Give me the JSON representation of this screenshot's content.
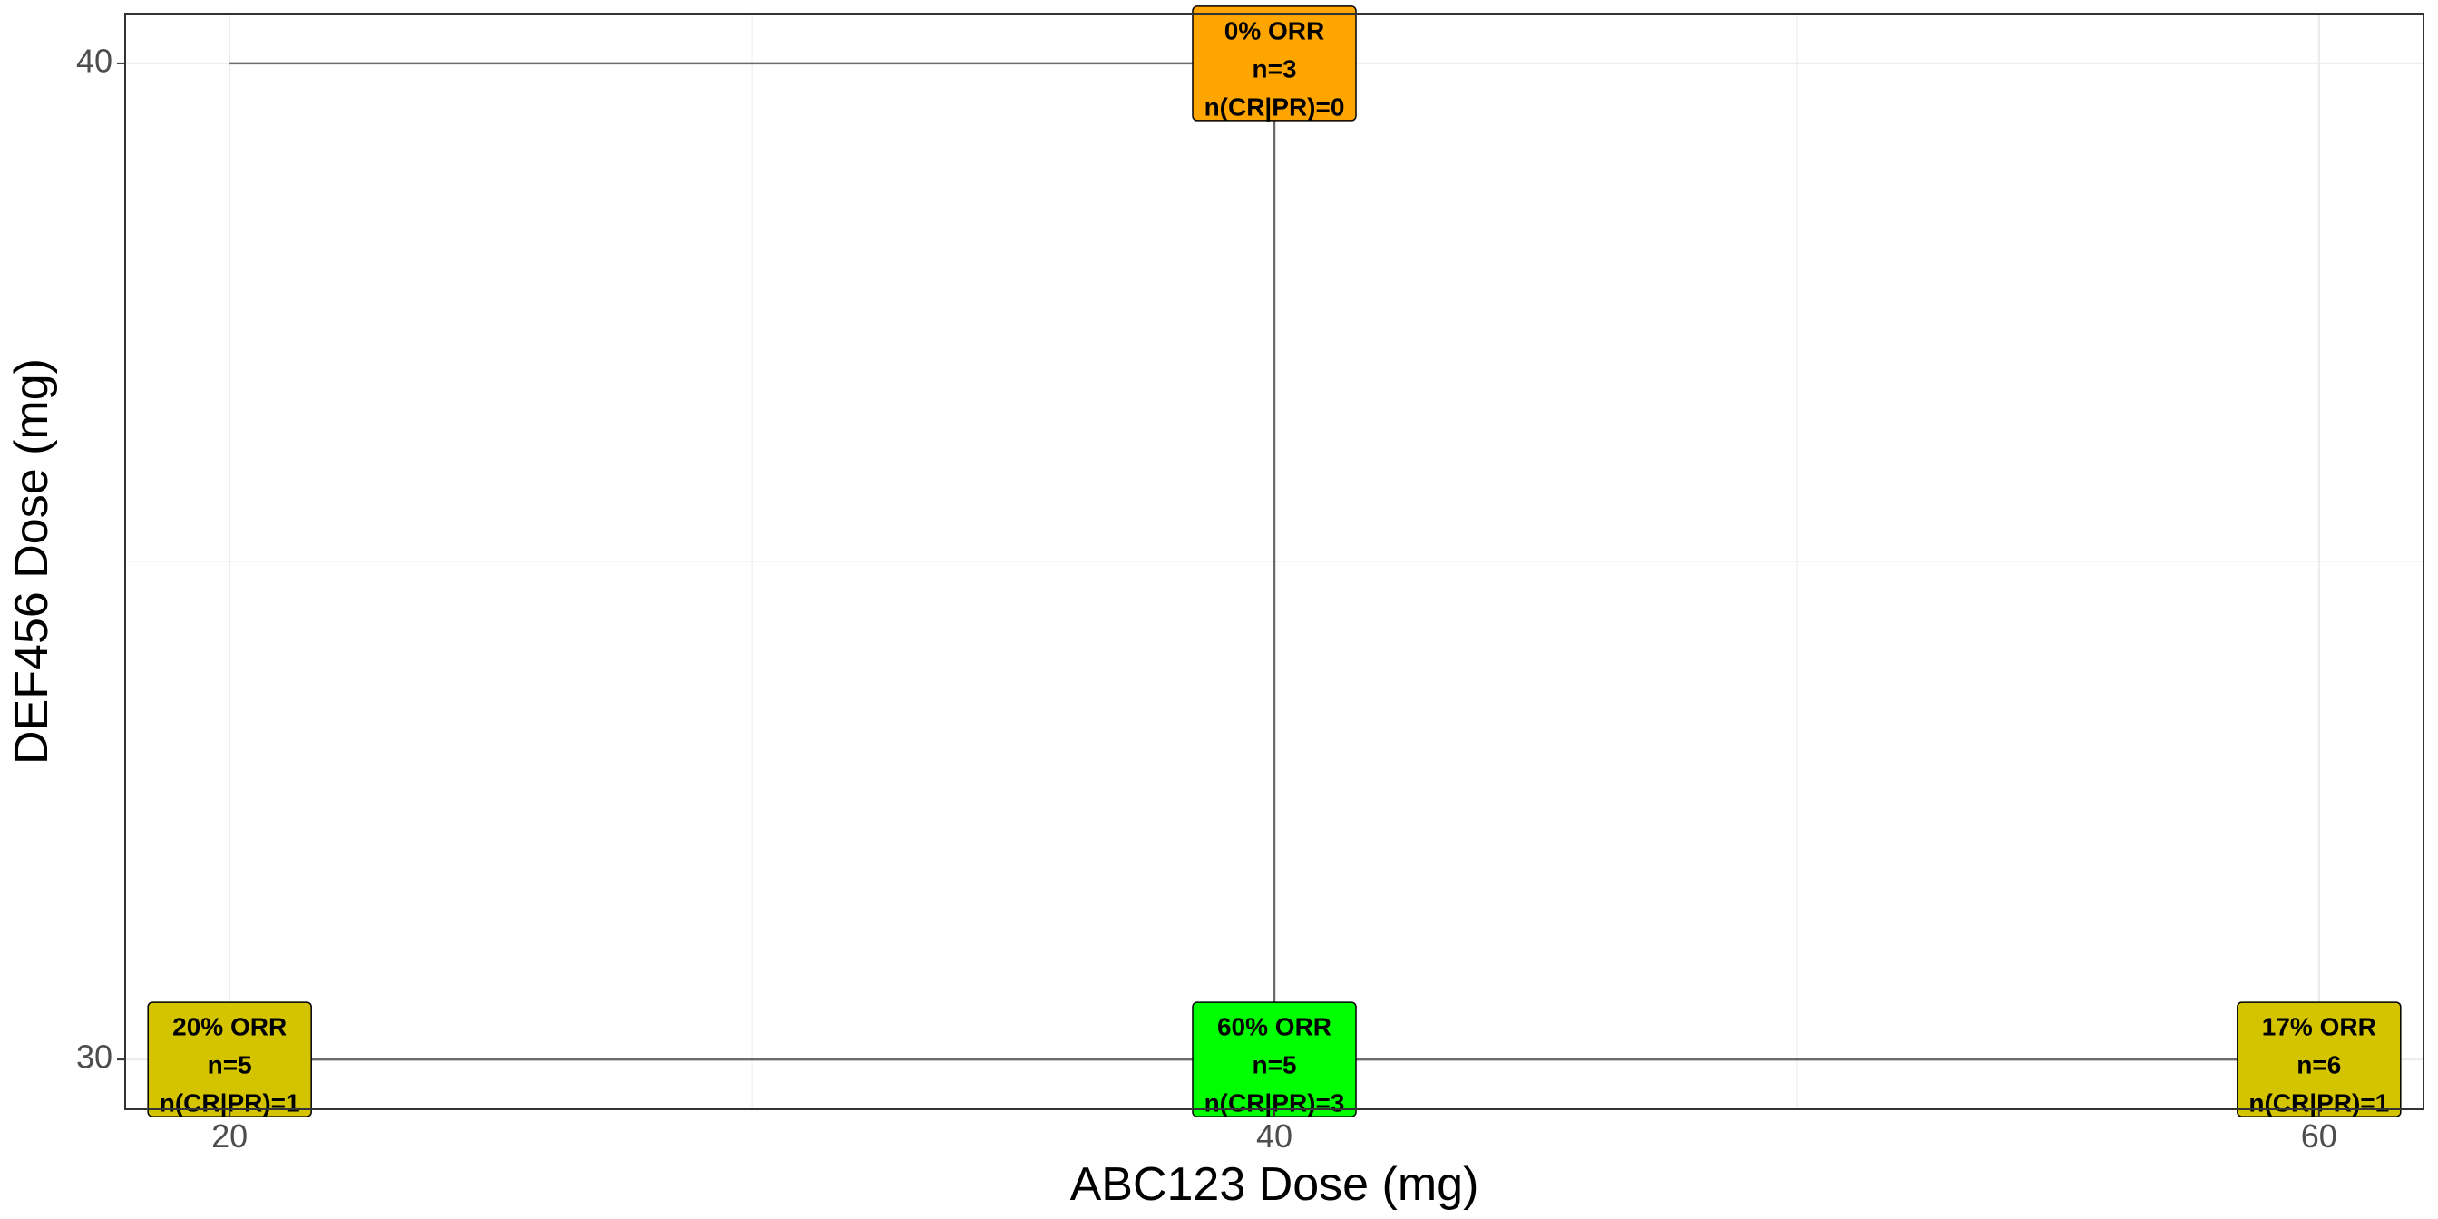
{
  "chart_data": {
    "type": "scatter",
    "xlabel": "ABC123 Dose (mg)",
    "ylabel": "DEF456 Dose (mg)",
    "x_ticks": [
      20,
      40,
      60
    ],
    "y_ticks": [
      30,
      40
    ],
    "xlim": [
      18,
      62
    ],
    "ylim": [
      29.5,
      40.5
    ],
    "grid": true,
    "connections": [
      {
        "from": [
          20,
          30
        ],
        "to": [
          40,
          30
        ]
      },
      {
        "from": [
          40,
          30
        ],
        "to": [
          60,
          30
        ]
      },
      {
        "from": [
          40,
          30
        ],
        "to": [
          40,
          40
        ]
      },
      {
        "from": [
          20,
          40
        ],
        "to": [
          40,
          40
        ]
      }
    ],
    "points": [
      {
        "x": 40,
        "y": 40,
        "orr": "0% ORR",
        "n": "n=3",
        "responders": "n(CR|PR)=0",
        "color": "#FFA500"
      },
      {
        "x": 20,
        "y": 30,
        "orr": "20% ORR",
        "n": "n=5",
        "responders": "n(CR|PR)=1",
        "color": "#D4C400"
      },
      {
        "x": 40,
        "y": 30,
        "orr": "60% ORR",
        "n": "n=5",
        "responders": "n(CR|PR)=3",
        "color": "#00FF00"
      },
      {
        "x": 60,
        "y": 30,
        "orr": "17% ORR",
        "n": "n=6",
        "responders": "n(CR|PR)=1",
        "color": "#D4C400"
      }
    ]
  }
}
